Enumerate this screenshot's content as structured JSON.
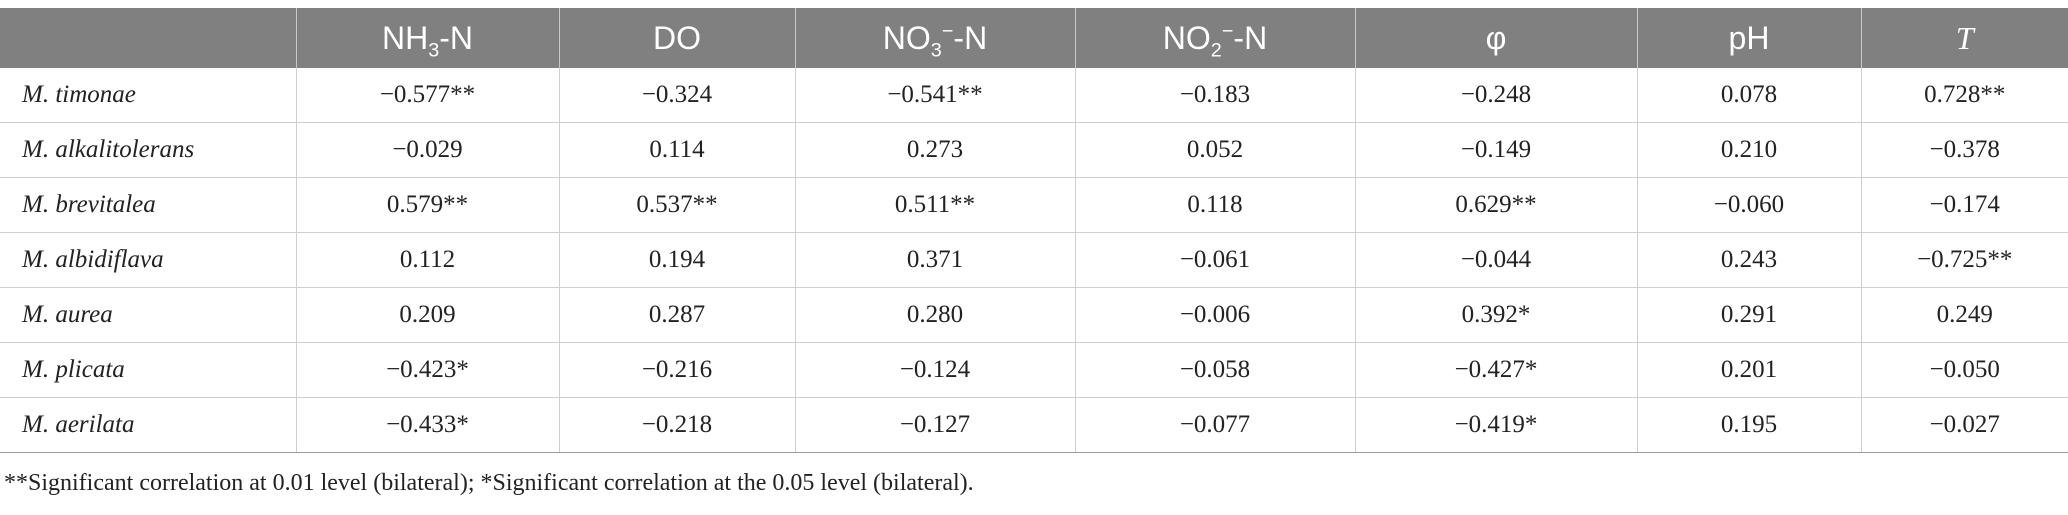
{
  "table": {
    "corner": "",
    "headers": [
      {
        "base": "NH",
        "sub": "3",
        "sup": "",
        "rest": "-N"
      },
      {
        "base": "DO",
        "sub": "",
        "sup": "",
        "rest": ""
      },
      {
        "base": "NO",
        "sub": "3",
        "sup": "−",
        "rest": "-N"
      },
      {
        "base": "NO",
        "sub": "2",
        "sup": "−",
        "rest": "-N"
      },
      {
        "base": "φ",
        "sub": "",
        "sup": "",
        "rest": ""
      },
      {
        "base": "pH",
        "sub": "",
        "sup": "",
        "rest": ""
      },
      {
        "base": "T",
        "sub": "",
        "sup": "",
        "rest": ""
      }
    ],
    "rows": [
      {
        "species": "M. timonae",
        "values": [
          "−0.577**",
          "−0.324",
          "−0.541**",
          "−0.183",
          "−0.248",
          "0.078",
          "0.728**"
        ]
      },
      {
        "species": "M. alkalitolerans",
        "values": [
          "−0.029",
          "0.114",
          "0.273",
          "0.052",
          "−0.149",
          "0.210",
          "−0.378"
        ]
      },
      {
        "species": "M. brevitalea",
        "values": [
          "0.579**",
          "0.537**",
          "0.511**",
          "0.118",
          "0.629**",
          "−0.060",
          "−0.174"
        ]
      },
      {
        "species": "M. albidiflava",
        "values": [
          "0.112",
          "0.194",
          "0.371",
          "−0.061",
          "−0.044",
          "0.243",
          "−0.725**"
        ]
      },
      {
        "species": "M. aurea",
        "values": [
          "0.209",
          "0.287",
          "0.280",
          "−0.006",
          "0.392*",
          "0.291",
          "0.249"
        ]
      },
      {
        "species": "M. plicata",
        "values": [
          "−0.423*",
          "−0.216",
          "−0.124",
          "−0.058",
          "−0.427*",
          "0.201",
          "−0.050"
        ]
      },
      {
        "species": "M. aerilata",
        "values": [
          "−0.433*",
          "−0.218",
          "−0.127",
          "−0.077",
          "−0.419*",
          "0.195",
          "−0.027"
        ]
      }
    ]
  },
  "footnote": "**Significant correlation at 0.01 level (bilateral); *Significant correlation at the 0.05 level (bilateral).",
  "colors": {
    "header_bg": "#808080",
    "header_text": "#ffffff",
    "grid": "#cfcfcf"
  }
}
